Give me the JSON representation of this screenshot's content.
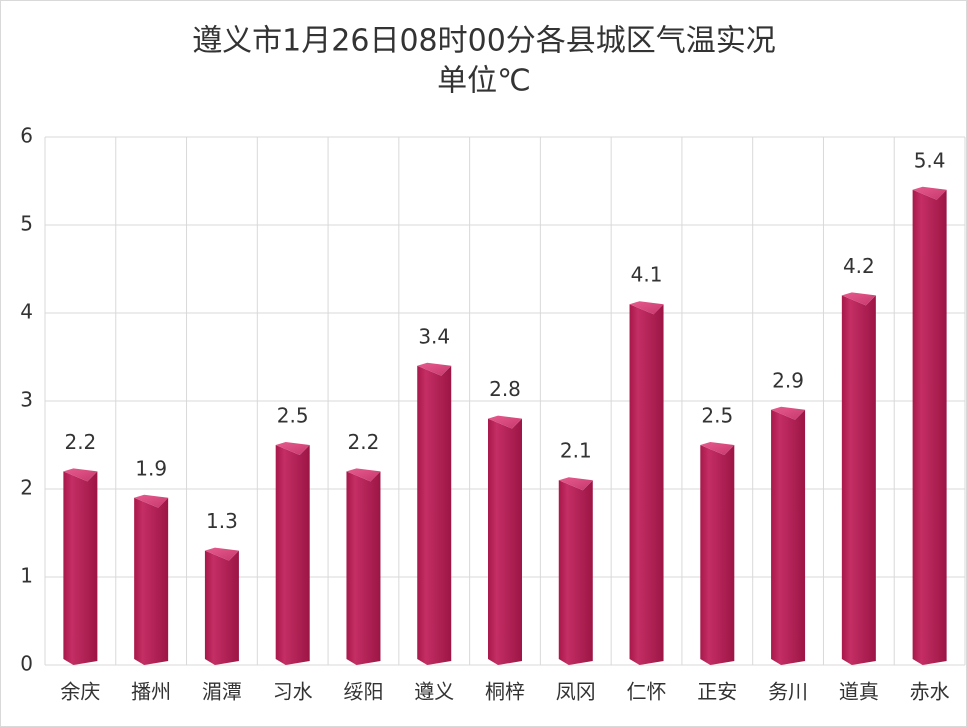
{
  "chart_data": {
    "type": "bar",
    "title": "遵义市1月26日08时00分各县城区气温实况",
    "subtitle": "单位℃",
    "categories": [
      "余庆",
      "播州",
      "湄潭",
      "习水",
      "绥阳",
      "遵义",
      "桐梓",
      "凤冈",
      "仁怀",
      "正安",
      "务川",
      "道真",
      "赤水"
    ],
    "values": [
      2.2,
      1.9,
      1.3,
      2.5,
      2.2,
      3.4,
      2.8,
      2.1,
      4.1,
      2.5,
      2.9,
      4.2,
      5.4
    ],
    "color": "#c42e64",
    "ylim": [
      0,
      6
    ],
    "yticks": [
      0,
      1,
      2,
      3,
      4,
      5,
      6
    ],
    "grid": true
  }
}
